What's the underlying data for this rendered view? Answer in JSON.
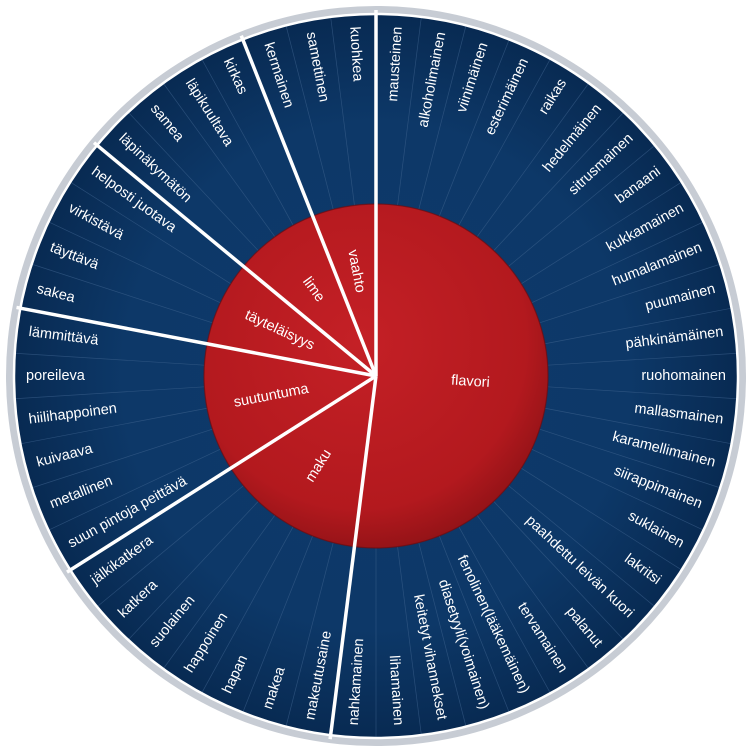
{
  "colors": {
    "outer_ring": "#0e3a6b",
    "outer_ring_dark": "#07264a",
    "inner_ring": "#b3191e",
    "inner_ring_dark": "#7e0f12",
    "separator": "#ffffff",
    "text": "#ffffff"
  },
  "wheel": {
    "categories": [
      {
        "name": "flavori",
        "terms": [
          "mausteinen",
          "alkoholimainen",
          "viinimäinen",
          "esterimäinen",
          "raikas",
          "hedelmäinen",
          "sitrusmainen",
          "banaani",
          "kukkamainen",
          "humalamainen",
          "puumainen",
          "pähkinämäinen",
          "ruohomainen",
          "mallasmainen",
          "karamellimainen",
          "siirappimainen",
          "suklainen",
          "lakritsi",
          "paahdettu leivän kuori",
          "palanut",
          "tervamainen",
          "fenolinen(lääkemäinen)",
          "diasetyyli(voimainen)",
          "keitetyt vihannekset",
          "lihamainen",
          "nahkamainen"
        ]
      },
      {
        "name": "maku",
        "terms": [
          "makeutusaine",
          "makea",
          "hapan",
          "happoinen",
          "suolainen",
          "katkera",
          "jälkikatkera"
        ]
      },
      {
        "name": "suutuntuma",
        "terms": [
          "suun pintoja peittävä",
          "metallinen",
          "kuivaava",
          "hiilihappoinen",
          "poreileva",
          "lämmittävä"
        ]
      },
      {
        "name": "täyteläisyys",
        "terms": [
          "sakea",
          "täyttävä",
          "virkistävä",
          "helposti juotava"
        ]
      },
      {
        "name": "lime",
        "terms": [
          "läpinäkymätön",
          "samea",
          "läpikuultava",
          "kirkas"
        ]
      },
      {
        "name": "vaahto",
        "terms": [
          "kermainen",
          "samettinen",
          "kuohkea"
        ]
      }
    ]
  }
}
